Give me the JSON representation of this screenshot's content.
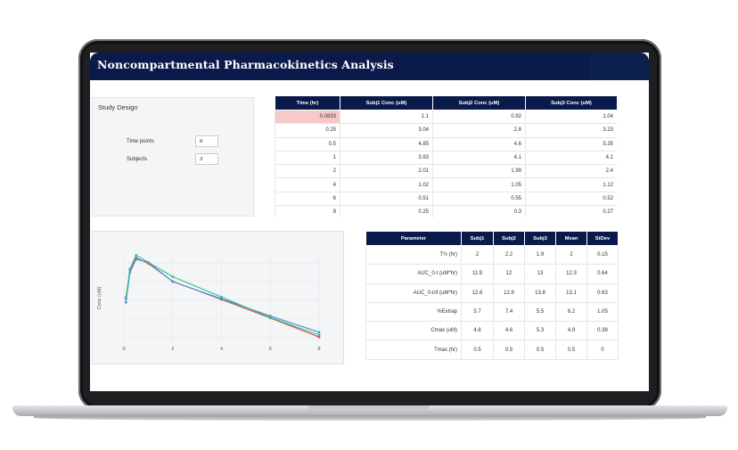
{
  "app": {
    "title": "Noncompartmental Pharmacokinetics Analysis"
  },
  "study_design": {
    "title": "Study Design",
    "fields": [
      {
        "label": "Time points",
        "value": "8"
      },
      {
        "label": "Subjects",
        "value": "3"
      }
    ]
  },
  "conc_table": {
    "headers": [
      "Time (hr)",
      "Subj1 Conc (uM)",
      "Subj2 Conc (uM)",
      "Subj3 Conc (uM)"
    ],
    "rows": [
      [
        "0.0833",
        "1.1",
        "0.92",
        "1.04"
      ],
      [
        "0.25",
        "3.04",
        "2.8",
        "3.23"
      ],
      [
        "0.5",
        "4.85",
        "4.6",
        "5.35"
      ],
      [
        "1",
        "3.93",
        "4.1",
        "4.1"
      ],
      [
        "2",
        "2.01",
        "1.99",
        "2.4"
      ],
      [
        "4",
        "1.02",
        "1.05",
        "1.12"
      ],
      [
        "6",
        "0.51",
        "0.55",
        "0.52"
      ],
      [
        "8",
        "0.25",
        "0.3",
        "0.27"
      ]
    ],
    "highlight_color": "#f8c9c9"
  },
  "param_table": {
    "headers": [
      "Parameter",
      "Subj1",
      "Subj2",
      "Subj3",
      "Mean",
      "StDev"
    ],
    "rows": [
      [
        "T½ (hr)",
        "2",
        "2.2",
        "1.9",
        "2",
        "0.15"
      ],
      [
        "AUC_0-t (uM*hr)",
        "11.9",
        "12",
        "13",
        "12.3",
        "0.64"
      ],
      [
        "AUC_0-inf (uM*hr)",
        "12.6",
        "12.9",
        "13.8",
        "13.1",
        "0.63"
      ],
      [
        "%Extrap",
        "5.7",
        "7.4",
        "5.5",
        "6.2",
        "1.05"
      ],
      [
        "Cmax (uM)",
        "4.8",
        "4.6",
        "5.3",
        "4.9",
        "0.38"
      ],
      [
        "Tmax (hr)",
        "0.5",
        "0.5",
        "0.5",
        "0.5",
        "0"
      ]
    ]
  },
  "colors": {
    "header_navy": "#0a1a4a"
  },
  "chart_data": {
    "type": "line",
    "title": "",
    "xlabel": "",
    "ylabel": "Conc (uM)",
    "x_ticks": [
      "0",
      "2",
      "4",
      "6",
      "8"
    ],
    "xlim": [
      0,
      8
    ],
    "ylim": [
      0,
      5.8
    ],
    "log_y": true,
    "grid": true,
    "legend": "none",
    "x": [
      0.0833,
      0.25,
      0.5,
      1,
      2,
      4,
      6,
      8
    ],
    "series": [
      {
        "values": [
          1.1,
          3.04,
          4.85,
          3.93,
          2.01,
          1.02,
          0.51,
          0.25
        ],
        "color": "#e0463c"
      },
      {
        "values": [
          0.92,
          2.8,
          4.6,
          4.1,
          1.99,
          1.05,
          0.55,
          0.3
        ],
        "color": "#4a8fd8"
      },
      {
        "values": [
          1.04,
          3.23,
          5.35,
          4.1,
          2.4,
          1.12,
          0.52,
          0.27
        ],
        "color": "#2fbf8f"
      }
    ]
  }
}
